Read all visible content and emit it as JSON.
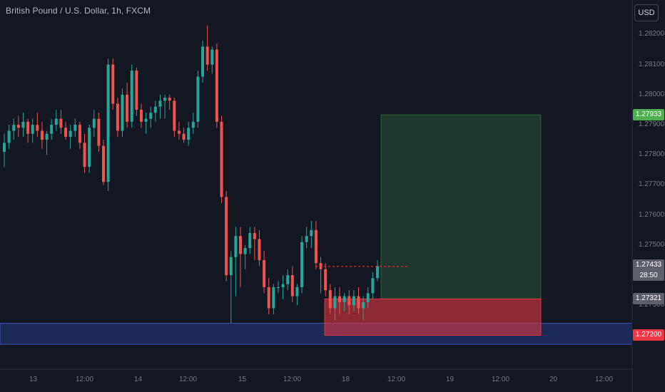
{
  "header": {
    "title": "British Pound / U.S. Dollar, 1h, FXCM",
    "currency_button": "USD"
  },
  "chart_data": {
    "type": "candlestick",
    "symbol": "British Pound / U.S. Dollar",
    "interval": "1h",
    "source": "FXCM",
    "y_ticks": [
      "1.28200",
      "1.28100",
      "1.28000",
      "1.27900",
      "1.27800",
      "1.27700",
      "1.27600",
      "1.27500",
      "1.27300"
    ],
    "x_ticks": [
      "13",
      "12:00",
      "14",
      "12:00",
      "15",
      "12:00",
      "18",
      "12:00",
      "19",
      "12:00",
      "20",
      "12:00"
    ],
    "ylim": [
      1.2713,
      1.2822
    ],
    "colors": {
      "up": "#26a69a",
      "down": "#ef5350"
    },
    "candles": [
      [
        1.2781,
        1.2787,
        1.2776,
        1.2784
      ],
      [
        1.2784,
        1.279,
        1.2782,
        1.2788
      ],
      [
        1.2788,
        1.2792,
        1.2785,
        1.279
      ],
      [
        1.279,
        1.2793,
        1.2786,
        1.2789
      ],
      [
        1.2789,
        1.2794,
        1.2786,
        1.2791
      ],
      [
        1.2791,
        1.2792,
        1.2784,
        1.2787
      ],
      [
        1.2787,
        1.2792,
        1.2784,
        1.279
      ],
      [
        1.279,
        1.2794,
        1.2786,
        1.2788
      ],
      [
        1.2788,
        1.2791,
        1.2782,
        1.2785
      ],
      [
        1.2785,
        1.2788,
        1.278,
        1.2787
      ],
      [
        1.2787,
        1.2792,
        1.2785,
        1.279
      ],
      [
        1.279,
        1.2795,
        1.2788,
        1.2792
      ],
      [
        1.2792,
        1.2795,
        1.2787,
        1.2789
      ],
      [
        1.2789,
        1.2791,
        1.2785,
        1.2786
      ],
      [
        1.2786,
        1.279,
        1.2782,
        1.2788
      ],
      [
        1.2788,
        1.2792,
        1.2786,
        1.279
      ],
      [
        1.279,
        1.2791,
        1.2782,
        1.2784
      ],
      [
        1.2784,
        1.2787,
        1.2774,
        1.2776
      ],
      [
        1.2776,
        1.279,
        1.2774,
        1.2789
      ],
      [
        1.2789,
        1.2795,
        1.2786,
        1.2792
      ],
      [
        1.2792,
        1.2794,
        1.2781,
        1.2783
      ],
      [
        1.2783,
        1.2785,
        1.277,
        1.2771
      ],
      [
        1.2771,
        1.2812,
        1.2768,
        1.281
      ],
      [
        1.281,
        1.2812,
        1.2795,
        1.2797
      ],
      [
        1.2797,
        1.2799,
        1.2786,
        1.2788
      ],
      [
        1.2788,
        1.2802,
        1.2786,
        1.28
      ],
      [
        1.28,
        1.2804,
        1.2789,
        1.2791
      ],
      [
        1.2791,
        1.281,
        1.2789,
        1.2808
      ],
      [
        1.2808,
        1.2809,
        1.2793,
        1.2795
      ],
      [
        1.2795,
        1.2797,
        1.2789,
        1.2791
      ],
      [
        1.2791,
        1.2794,
        1.2787,
        1.2792
      ],
      [
        1.2792,
        1.2796,
        1.2789,
        1.2794
      ],
      [
        1.2794,
        1.2798,
        1.2791,
        1.2796
      ],
      [
        1.2796,
        1.28,
        1.2792,
        1.2798
      ],
      [
        1.2798,
        1.28,
        1.2792,
        1.2799
      ],
      [
        1.2799,
        1.28,
        1.2795,
        1.2798
      ],
      [
        1.2798,
        1.2799,
        1.2786,
        1.2788
      ],
      [
        1.2788,
        1.2791,
        1.2785,
        1.2787
      ],
      [
        1.2787,
        1.2789,
        1.2784,
        1.2785
      ],
      [
        1.2785,
        1.2791,
        1.2783,
        1.2789
      ],
      [
        1.2789,
        1.2794,
        1.2787,
        1.2791
      ],
      [
        1.2791,
        1.2808,
        1.2789,
        1.2806
      ],
      [
        1.2806,
        1.2818,
        1.2804,
        1.2816
      ],
      [
        1.2816,
        1.2823,
        1.2808,
        1.281
      ],
      [
        1.281,
        1.2816,
        1.2807,
        1.2815
      ],
      [
        1.2815,
        1.2817,
        1.2789,
        1.2791
      ],
      [
        1.2791,
        1.2793,
        1.2764,
        1.2766
      ],
      [
        1.2766,
        1.2768,
        1.2738,
        1.274
      ],
      [
        1.274,
        1.2748,
        1.2724,
        1.2746
      ],
      [
        1.2746,
        1.2756,
        1.2733,
        1.2753
      ],
      [
        1.2753,
        1.2756,
        1.2736,
        1.2747
      ],
      [
        1.2747,
        1.275,
        1.2742,
        1.2749
      ],
      [
        1.2749,
        1.2756,
        1.2747,
        1.2754
      ],
      [
        1.2754,
        1.2756,
        1.2745,
        1.2752
      ],
      [
        1.2752,
        1.2755,
        1.2743,
        1.2745
      ],
      [
        1.2745,
        1.2748,
        1.2734,
        1.2736
      ],
      [
        1.2736,
        1.2739,
        1.2727,
        1.2729
      ],
      [
        1.2729,
        1.2737,
        1.2727,
        1.2736
      ],
      [
        1.2736,
        1.2738,
        1.2734,
        1.2736
      ],
      [
        1.2736,
        1.274,
        1.2732,
        1.2737
      ],
      [
        1.2737,
        1.2742,
        1.2735,
        1.274
      ],
      [
        1.274,
        1.2743,
        1.2731,
        1.2733
      ],
      [
        1.2733,
        1.2737,
        1.273,
        1.2736
      ],
      [
        1.2736,
        1.2753,
        1.2734,
        1.2751
      ],
      [
        1.2751,
        1.2756,
        1.2749,
        1.2753
      ],
      [
        1.2753,
        1.2758,
        1.2749,
        1.2755
      ],
      [
        1.2755,
        1.2758,
        1.2742,
        1.2744
      ],
      [
        1.2744,
        1.2746,
        1.2734,
        1.2742
      ],
      [
        1.2742,
        1.2744,
        1.2733,
        1.2735
      ],
      [
        1.2735,
        1.2737,
        1.2727,
        1.2729
      ],
      [
        1.2729,
        1.2736,
        1.2725,
        1.2733
      ],
      [
        1.2733,
        1.2736,
        1.2727,
        1.2731
      ],
      [
        1.2731,
        1.2734,
        1.2728,
        1.2733
      ],
      [
        1.2733,
        1.2735,
        1.2727,
        1.273
      ],
      [
        1.273,
        1.2735,
        1.2728,
        1.2733
      ],
      [
        1.2733,
        1.2736,
        1.2727,
        1.2729
      ],
      [
        1.2729,
        1.2733,
        1.2725,
        1.2731
      ],
      [
        1.2731,
        1.2736,
        1.2729,
        1.2734
      ],
      [
        1.2734,
        1.2741,
        1.2732,
        1.2739
      ],
      [
        1.2739,
        1.2745,
        1.2738,
        1.2743
      ]
    ],
    "support_zone": {
      "top": 1.2724,
      "bottom": 1.2717
    },
    "position": {
      "entry": 1.27321,
      "target": 1.27933,
      "stop": 1.272
    },
    "price_tags": [
      {
        "label": "1.27933",
        "value": 1.27933,
        "color": "#4caf50"
      },
      {
        "label": "1.27433",
        "sub": "28:50",
        "value": 1.27433,
        "color": "#5d606b"
      },
      {
        "label": "1.27321",
        "value": 1.27321,
        "color": "#5d606b"
      },
      {
        "label": "1.27200",
        "value": 1.272,
        "color": "#f23645"
      }
    ]
  }
}
